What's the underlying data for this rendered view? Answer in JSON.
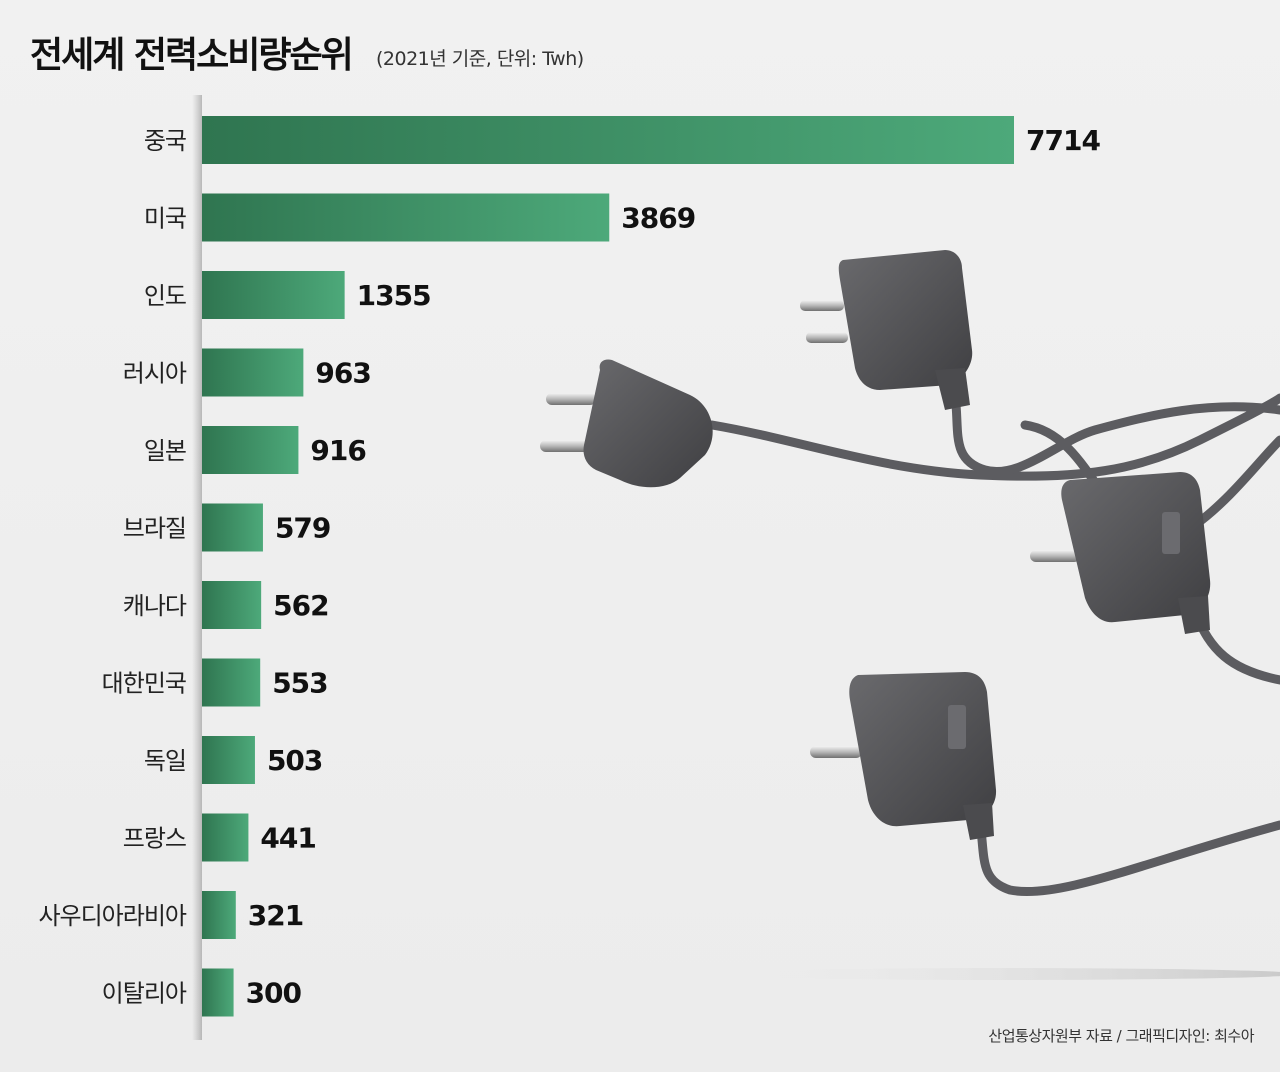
{
  "title": "전세계 전력소비량순위",
  "subtitle": "(2021년 기준, 단위: Twh)",
  "source": "산업통상자원부 자료 / 그래픽디자인: 최수아",
  "colors": {
    "bar_dark": "#2f7550",
    "bar_light": "#4da97a",
    "plug_body": "#58585b",
    "cord": "#5c5c60"
  },
  "chart_data": {
    "type": "bar",
    "orientation": "horizontal",
    "categories": [
      "중국",
      "미국",
      "인도",
      "러시아",
      "일본",
      "브라질",
      "캐나다",
      "대한민국",
      "독일",
      "프랑스",
      "사우디아라비아",
      "이탈리아"
    ],
    "values": [
      7714,
      3869,
      1355,
      963,
      916,
      579,
      562,
      553,
      503,
      441,
      321,
      300
    ],
    "title": "전세계 전력소비량순위",
    "subtitle": "(2021년 기준, 단위: Twh)",
    "xlabel": "",
    "ylabel": "",
    "xlim": [
      0,
      7714
    ],
    "grid": false,
    "legend": "none"
  }
}
